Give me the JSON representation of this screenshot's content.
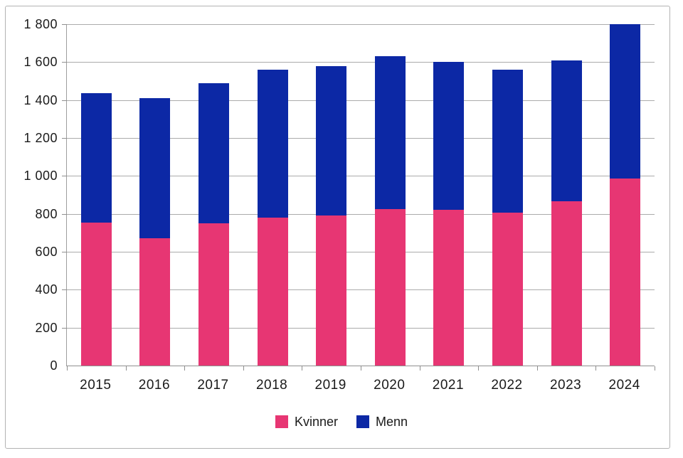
{
  "chart_data": {
    "type": "bar",
    "stacked": true,
    "title": "",
    "xlabel": "",
    "ylabel": "",
    "categories": [
      "2015",
      "2016",
      "2017",
      "2018",
      "2019",
      "2020",
      "2021",
      "2022",
      "2023",
      "2024"
    ],
    "series": [
      {
        "name": "Kvinner",
        "color": "#E73673",
        "values": [
          755,
          670,
          750,
          780,
          790,
          825,
          820,
          805,
          865,
          985
        ]
      },
      {
        "name": "Menn",
        "color": "#0C28A5",
        "values": [
          680,
          740,
          740,
          780,
          790,
          805,
          780,
          755,
          745,
          815
        ]
      }
    ],
    "ylim": [
      0,
      1800
    ],
    "ytick_step": 200,
    "ytick_labels": [
      "0",
      "200",
      "400",
      "600",
      "800",
      "1 000",
      "1 200",
      "1 400",
      "1 600",
      "1 800"
    ],
    "grid": true,
    "legend_position": "bottom"
  },
  "colors": {
    "background": "#ffffff",
    "gridline": "#ababab",
    "axis": "#8f8f8f",
    "text": "#1a1a1a",
    "figure_border": "#b3b3b3"
  }
}
